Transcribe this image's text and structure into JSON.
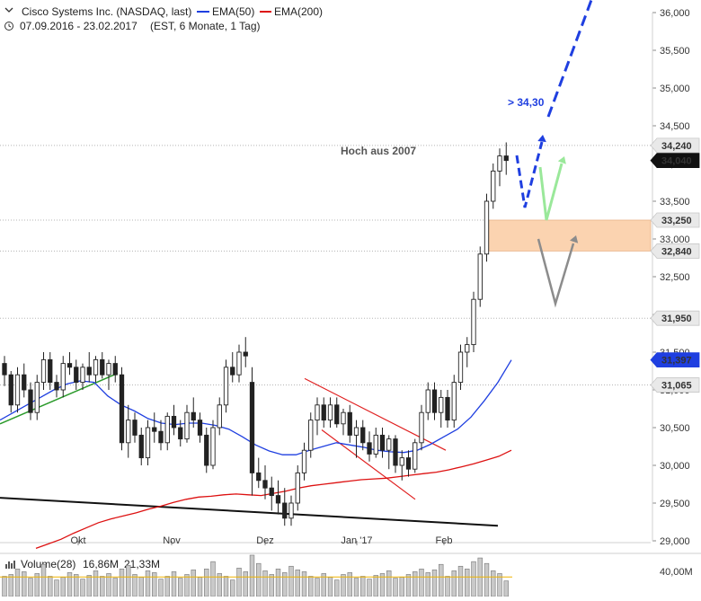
{
  "header": {
    "title": "Cisco Systems Inc. (NASDAQ, last)",
    "ema50_label": "EMA(50)",
    "ema200_label": "EMA(200)",
    "date_range": "07.09.2016 - 23.02.2017",
    "settings": "(EST, 6 Monate, 1 Tag)",
    "colors": {
      "ema50": "#1f3fe0",
      "ema200": "#dd1111",
      "price": "#222222"
    }
  },
  "volume_panel": {
    "label": "Volume(28)",
    "value": "16,86M",
    "avg": "21,33M",
    "axis_label": "40,00M",
    "avg_color": "#f0b400"
  },
  "chart_data": {
    "type": "candlestick",
    "x_ticks": [
      "Okt",
      "Nov",
      "Dez",
      "Jan '17",
      "Feb"
    ],
    "y_ticks": [
      "29,000",
      "29,500",
      "30,000",
      "30,500",
      "31,000",
      "31,500",
      "32,000",
      "32,500",
      "33,000",
      "33,500",
      "34,000",
      "34,500",
      "35,000",
      "35,500",
      "36,000"
    ],
    "ylim": [
      28.95,
      36.05
    ],
    "level_labels": [
      {
        "value": 34.24,
        "label": "34,240",
        "style": "gray"
      },
      {
        "value": 34.04,
        "label": "34,040",
        "style": "black"
      },
      {
        "value": 33.25,
        "label": "33,250",
        "style": "gray"
      },
      {
        "value": 32.84,
        "label": "32,840",
        "style": "gray"
      },
      {
        "value": 31.95,
        "label": "31,950",
        "style": "gray"
      },
      {
        "value": 31.397,
        "label": "31,397",
        "style": "blue"
      },
      {
        "value": 31.065,
        "label": "31,065",
        "style": "gray"
      }
    ],
    "annotations": [
      {
        "text": "Hoch aus 2007",
        "near_value": 34.1
      },
      {
        "text": "> 34,30",
        "near_value": 34.3
      }
    ],
    "support_zone": [
      32.84,
      33.25
    ],
    "candles": [
      [
        31.35,
        31.45,
        31.05,
        31.2
      ],
      [
        31.2,
        31.25,
        30.7,
        30.8
      ],
      [
        30.8,
        31.3,
        30.7,
        31.2
      ],
      [
        31.2,
        31.35,
        30.9,
        31.0
      ],
      [
        31.0,
        31.1,
        30.6,
        30.7
      ],
      [
        30.7,
        31.2,
        30.6,
        31.1
      ],
      [
        31.1,
        31.5,
        31.0,
        31.4
      ],
      [
        31.4,
        31.5,
        31.0,
        31.1
      ],
      [
        31.1,
        31.2,
        30.9,
        31.0
      ],
      [
        31.0,
        31.45,
        30.9,
        31.35
      ],
      [
        31.35,
        31.5,
        31.2,
        31.3
      ],
      [
        31.3,
        31.4,
        31.0,
        31.1
      ],
      [
        31.1,
        31.35,
        31.0,
        31.3
      ],
      [
        31.3,
        31.5,
        31.1,
        31.2
      ],
      [
        31.2,
        31.45,
        31.1,
        31.4
      ],
      [
        31.4,
        31.5,
        31.15,
        31.2
      ],
      [
        31.2,
        31.4,
        31.0,
        31.35
      ],
      [
        31.35,
        31.45,
        31.1,
        31.2
      ],
      [
        31.2,
        31.3,
        30.2,
        30.3
      ],
      [
        30.3,
        30.8,
        30.1,
        30.6
      ],
      [
        30.6,
        30.7,
        30.3,
        30.4
      ],
      [
        30.4,
        30.5,
        30.0,
        30.1
      ],
      [
        30.1,
        30.6,
        30.0,
        30.5
      ],
      [
        30.5,
        30.7,
        30.3,
        30.45
      ],
      [
        30.45,
        30.6,
        30.2,
        30.3
      ],
      [
        30.3,
        30.7,
        30.2,
        30.65
      ],
      [
        30.65,
        30.8,
        30.4,
        30.5
      ],
      [
        30.5,
        30.6,
        30.25,
        30.35
      ],
      [
        30.35,
        30.8,
        30.3,
        30.7
      ],
      [
        30.7,
        30.9,
        30.5,
        30.6
      ],
      [
        30.6,
        30.7,
        30.3,
        30.4
      ],
      [
        30.4,
        30.5,
        29.9,
        30.0
      ],
      [
        30.0,
        30.6,
        29.95,
        30.5
      ],
      [
        30.5,
        30.9,
        30.4,
        30.8
      ],
      [
        30.8,
        31.4,
        30.7,
        31.3
      ],
      [
        31.3,
        31.5,
        31.1,
        31.2
      ],
      [
        31.2,
        31.6,
        31.1,
        31.5
      ],
      [
        31.5,
        31.7,
        31.3,
        31.45
      ],
      [
        31.1,
        31.3,
        29.6,
        29.9
      ],
      [
        29.9,
        30.1,
        29.7,
        29.8
      ],
      [
        29.8,
        30.0,
        29.55,
        29.7
      ],
      [
        29.7,
        29.85,
        29.4,
        29.6
      ],
      [
        29.6,
        29.8,
        29.35,
        29.5
      ],
      [
        29.5,
        29.7,
        29.2,
        29.3
      ],
      [
        29.3,
        29.6,
        29.2,
        29.5
      ],
      [
        29.5,
        30.0,
        29.4,
        29.9
      ],
      [
        29.9,
        30.3,
        29.8,
        30.2
      ],
      [
        30.2,
        30.7,
        30.1,
        30.6
      ],
      [
        30.6,
        30.9,
        30.4,
        30.8
      ],
      [
        30.8,
        30.9,
        30.5,
        30.6
      ],
      [
        30.6,
        30.9,
        30.5,
        30.8
      ],
      [
        30.8,
        30.9,
        30.5,
        30.55
      ],
      [
        30.55,
        30.75,
        30.4,
        30.7
      ],
      [
        30.7,
        30.8,
        30.3,
        30.4
      ],
      [
        30.4,
        30.6,
        30.1,
        30.5
      ],
      [
        30.5,
        30.6,
        30.2,
        30.3
      ],
      [
        30.3,
        30.45,
        30.05,
        30.15
      ],
      [
        30.15,
        30.5,
        30.1,
        30.4
      ],
      [
        30.4,
        30.5,
        30.1,
        30.2
      ],
      [
        30.2,
        30.4,
        29.95,
        30.35
      ],
      [
        30.35,
        30.4,
        29.9,
        30.0
      ],
      [
        30.0,
        30.2,
        29.8,
        30.1
      ],
      [
        30.1,
        30.2,
        29.85,
        29.95
      ],
      [
        29.95,
        30.35,
        29.9,
        30.3
      ],
      [
        30.3,
        30.8,
        30.2,
        30.7
      ],
      [
        30.7,
        31.1,
        30.6,
        31.0
      ],
      [
        31.0,
        31.1,
        30.6,
        30.7
      ],
      [
        30.7,
        31.0,
        30.5,
        30.9
      ],
      [
        30.9,
        31.0,
        30.5,
        30.6
      ],
      [
        30.6,
        31.2,
        30.5,
        31.1
      ],
      [
        31.1,
        31.6,
        31.0,
        31.5
      ],
      [
        31.5,
        31.7,
        31.3,
        31.6
      ],
      [
        31.6,
        32.3,
        31.5,
        32.2
      ],
      [
        32.2,
        32.9,
        32.1,
        32.8
      ],
      [
        32.8,
        33.6,
        32.7,
        33.5
      ],
      [
        33.5,
        34.0,
        33.4,
        33.9
      ],
      [
        33.9,
        34.2,
        33.7,
        34.1
      ],
      [
        34.1,
        34.28,
        33.85,
        34.04
      ]
    ],
    "ema50": [
      30.6,
      30.7,
      30.8,
      30.9,
      31.0,
      31.08,
      31.12,
      31.1,
      30.92,
      30.8,
      30.72,
      30.62,
      30.56,
      30.54,
      30.56,
      30.56,
      30.53,
      30.48,
      30.38,
      30.27,
      30.19,
      30.14,
      30.14,
      30.2,
      30.25,
      30.3,
      30.27,
      30.24,
      30.2,
      30.18,
      30.17,
      30.2,
      30.28,
      30.38,
      30.48,
      30.64,
      30.86,
      31.1,
      31.397
    ],
    "ema200": [
      28.9,
      28.96,
      29.02,
      29.1,
      29.17,
      29.24,
      29.29,
      29.33,
      29.37,
      29.42,
      29.46,
      29.51,
      29.55,
      29.58,
      29.59,
      29.61,
      29.62,
      29.61,
      29.6,
      29.63,
      29.66,
      29.7,
      29.73,
      29.75,
      29.77,
      29.79,
      29.81,
      29.82,
      29.83,
      29.85,
      29.87,
      29.89,
      29.91,
      29.94,
      29.98,
      30.02,
      30.07,
      30.12,
      30.2
    ],
    "volume": [
      22,
      24,
      30,
      27,
      20,
      25,
      35,
      22,
      18,
      21,
      26,
      24,
      19,
      23,
      28,
      22,
      25,
      20,
      30,
      34,
      24,
      21,
      28,
      26,
      19,
      22,
      27,
      20,
      24,
      29,
      21,
      30,
      38,
      25,
      22,
      18,
      31,
      27,
      45,
      36,
      28,
      24,
      30,
      26,
      33,
      29,
      27,
      22,
      20,
      25,
      21,
      18,
      24,
      26,
      20,
      22,
      19,
      23,
      25,
      28,
      20,
      21,
      24,
      27,
      30,
      26,
      29,
      35,
      22,
      28,
      33,
      30,
      38,
      42,
      36,
      28,
      25,
      17
    ]
  }
}
